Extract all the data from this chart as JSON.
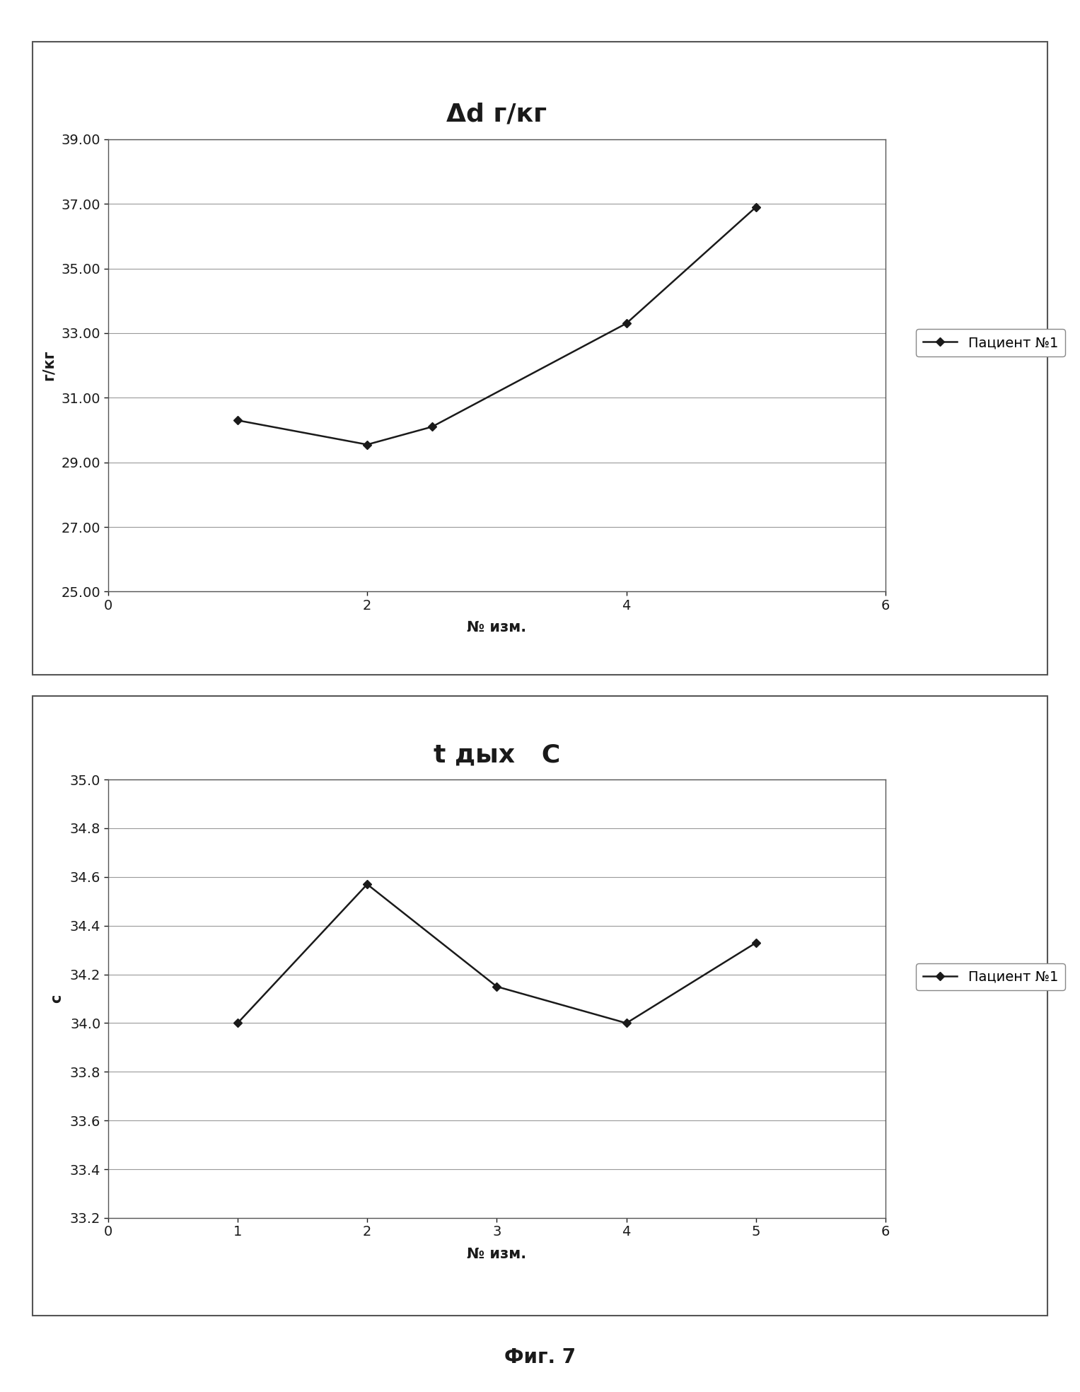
{
  "chart1": {
    "title": "Δd г/кг",
    "xlabel": "№ изм.",
    "ylabel": "г/кг",
    "x": [
      1,
      2,
      2.5,
      4,
      5
    ],
    "y": [
      30.3,
      29.55,
      30.1,
      33.3,
      36.9
    ],
    "xlim": [
      0,
      6
    ],
    "ylim": [
      25.0,
      39.0
    ],
    "yticks": [
      25.0,
      27.0,
      29.0,
      31.0,
      33.0,
      35.0,
      37.0,
      39.0
    ],
    "xticks": [
      0,
      2,
      4,
      6
    ],
    "legend_label": "Пациент №1"
  },
  "chart2": {
    "title": "t дых   С",
    "xlabel": "№ изм.",
    "ylabel": "с",
    "x": [
      1,
      2,
      3,
      4,
      5
    ],
    "y": [
      34.0,
      34.57,
      34.15,
      34.0,
      34.33
    ],
    "xlim": [
      0,
      6
    ],
    "ylim": [
      33.2,
      35.0
    ],
    "yticks": [
      33.2,
      33.4,
      33.6,
      33.8,
      34.0,
      34.2,
      34.4,
      34.6,
      34.8,
      35.0
    ],
    "xticks": [
      0,
      1,
      2,
      3,
      4,
      5,
      6
    ],
    "legend_label": "Пациент №1"
  },
  "footer": "Фиг. 7",
  "line_color": "#1a1a1a",
  "marker": "D",
  "marker_size": 6,
  "line_width": 1.8,
  "bg_color": "#ffffff",
  "grid_color": "#999999",
  "title_fontsize": 26,
  "label_fontsize": 15,
  "tick_fontsize": 14,
  "legend_fontsize": 14,
  "footer_fontsize": 20
}
